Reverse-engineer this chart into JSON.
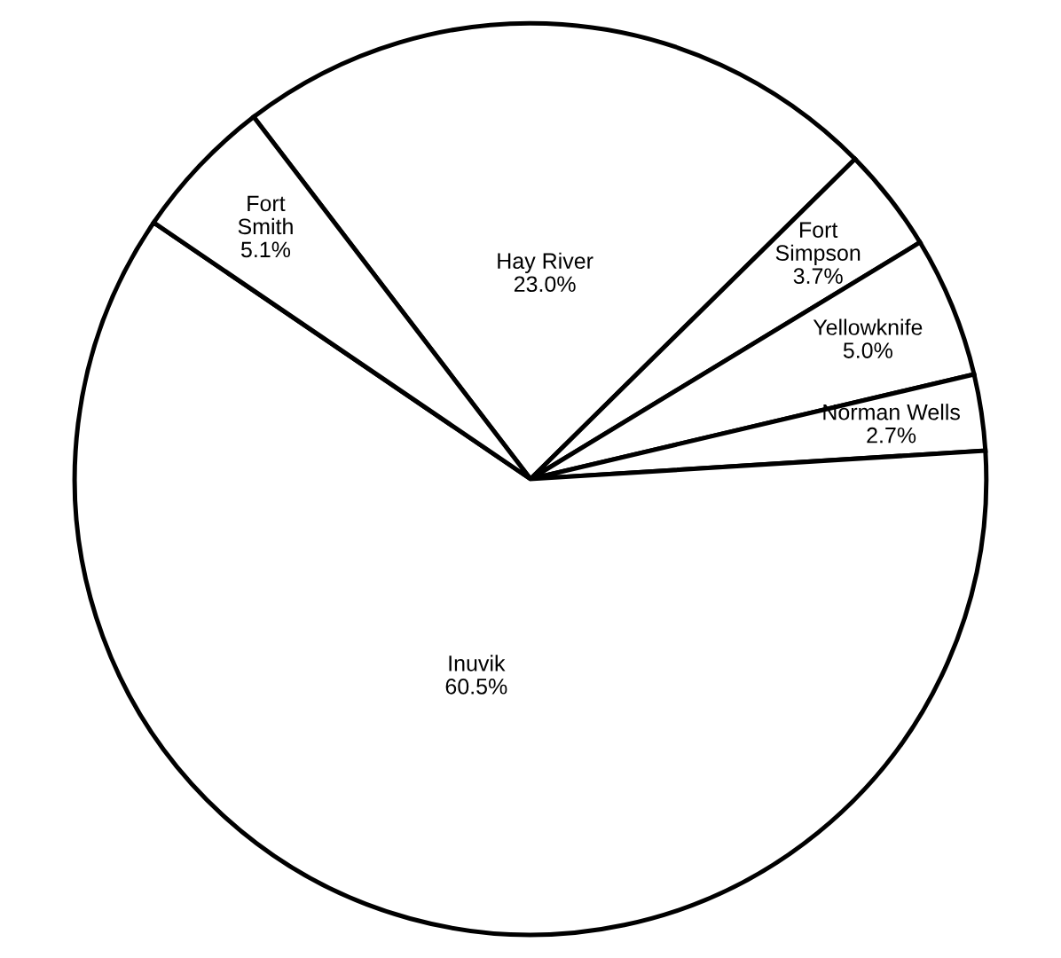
{
  "chart_data": {
    "type": "pie",
    "categories": [
      "Hay River",
      "Fort\nSimpson",
      "Yellowknife",
      "Norman Wells",
      "Inuvik",
      "Fort\nSmith"
    ],
    "values": [
      23.0,
      3.7,
      5.0,
      2.7,
      60.5,
      5.1
    ],
    "value_labels": [
      "23.0%",
      "3.7%",
      "5.0%",
      "2.7%",
      "60.5%",
      "5.1%"
    ],
    "colors": [
      "#ffffff",
      "#ffffff",
      "#ffffff",
      "#ffffff",
      "#ffffff",
      "#ffffff"
    ]
  }
}
